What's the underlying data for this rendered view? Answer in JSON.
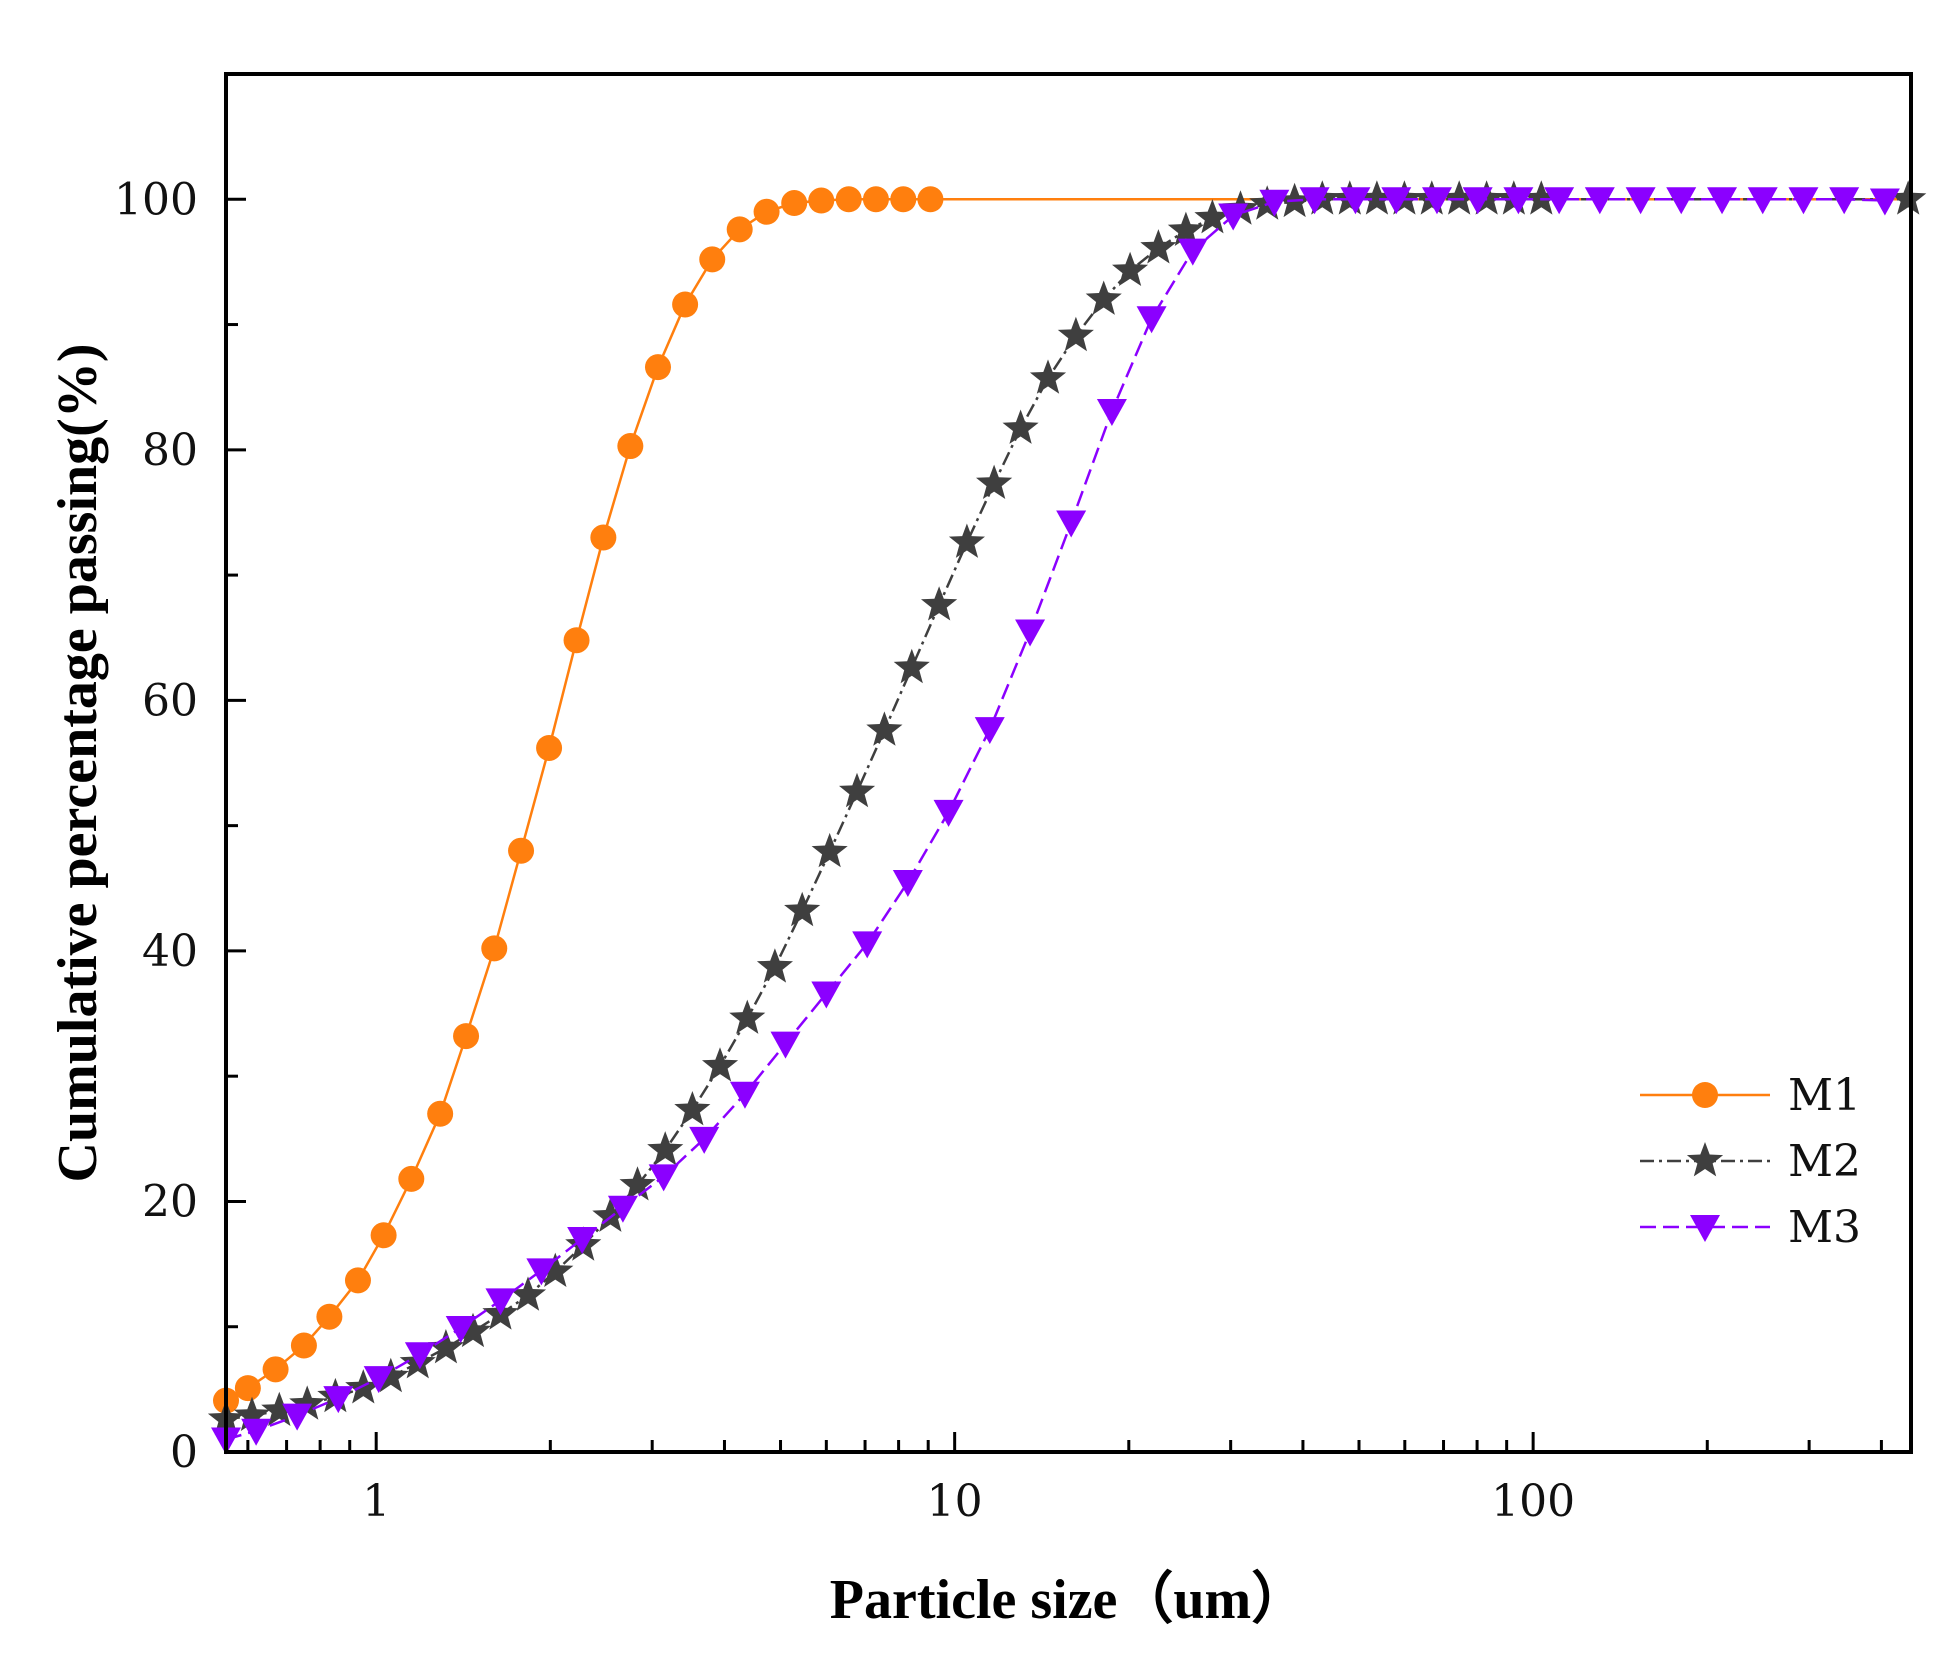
{
  "chart_data": {
    "type": "line",
    "title": "",
    "xlabel": "Particle size（um）",
    "ylabel": "Cumulative percentage passing(%)",
    "xscale": "log",
    "xlim": [
      0.55,
      450
    ],
    "ylim": [
      0,
      110
    ],
    "x_ticks": [
      1,
      10,
      100
    ],
    "x_tick_labels": [
      "1",
      "10",
      "100"
    ],
    "y_ticks": [
      0,
      20,
      40,
      60,
      80,
      100
    ],
    "y_tick_labels": [
      "0",
      "20",
      "40",
      "60",
      "80",
      "100"
    ],
    "grid": false,
    "legend_position": "center-right",
    "series": [
      {
        "name": "M1",
        "color": "#ff7f0e",
        "marker": "circle",
        "line_style": "solid",
        "x": [
          0.55,
          0.6,
          0.67,
          0.75,
          0.83,
          0.93,
          1.03,
          1.15,
          1.29,
          1.43,
          1.6,
          1.78,
          1.99,
          2.22,
          2.47,
          2.75,
          3.07,
          3.42,
          3.81,
          4.25,
          4.73,
          5.28,
          5.88,
          6.56,
          7.31,
          8.15,
          9.08
        ],
        "y": [
          4.1,
          5.1,
          6.6,
          8.5,
          10.8,
          13.7,
          17.3,
          21.8,
          27.0,
          33.2,
          40.2,
          48.0,
          56.2,
          64.8,
          73.0,
          80.3,
          86.6,
          91.6,
          95.2,
          97.6,
          99.0,
          99.7,
          99.9,
          100,
          100,
          100,
          100
        ],
        "line_extends_to_x": 450
      },
      {
        "name": "M2",
        "color": "#3f3f3f",
        "marker": "star",
        "line_style": "dash-dot",
        "x": [
          0.55,
          0.61,
          0.68,
          0.76,
          0.85,
          0.95,
          1.06,
          1.18,
          1.32,
          1.47,
          1.64,
          1.83,
          2.04,
          2.28,
          2.54,
          2.83,
          3.16,
          3.52,
          3.93,
          4.38,
          4.89,
          5.45,
          6.08,
          6.78,
          7.56,
          8.43,
          9.4,
          10.5,
          11.7,
          13.0,
          14.5,
          16.2,
          18.1,
          20.1,
          22.5,
          25.1,
          27.9,
          31.2,
          34.7,
          38.7,
          43.2,
          48.2,
          53.7,
          59.9,
          66.8,
          74.5,
          83.1,
          92.6,
          103.3,
          445.0
        ],
        "y": [
          2.6,
          2.9,
          3.3,
          3.8,
          4.4,
          5.1,
          6.0,
          7.1,
          8.3,
          9.6,
          11.0,
          12.5,
          14.4,
          16.5,
          18.8,
          21.3,
          24.1,
          27.3,
          30.8,
          34.6,
          38.7,
          43.2,
          47.9,
          52.7,
          57.6,
          62.6,
          67.6,
          72.6,
          77.3,
          81.7,
          85.7,
          89.1,
          92.0,
          94.3,
          96.1,
          97.5,
          98.5,
          99.2,
          99.6,
          99.8,
          100,
          100,
          100,
          100,
          100,
          100,
          100,
          100,
          100,
          100
        ]
      },
      {
        "name": "M3",
        "color": "#8b00ff",
        "marker": "triangle-down",
        "line_style": "dashed",
        "x": [
          0.55,
          0.62,
          0.73,
          0.86,
          1.01,
          1.19,
          1.4,
          1.64,
          1.93,
          2.27,
          2.67,
          3.14,
          3.69,
          4.34,
          5.1,
          6.0,
          7.06,
          8.3,
          9.76,
          11.5,
          13.5,
          15.9,
          18.7,
          21.9,
          25.8,
          30.3,
          35.7,
          41.9,
          49.3,
          58.0,
          68.2,
          80.2,
          94.3,
          110.9,
          130.4,
          153.4,
          180.3,
          212.1,
          249.4,
          293.3,
          344.9,
          405.6
        ],
        "y": [
          1.0,
          1.7,
          2.9,
          4.3,
          5.9,
          7.8,
          9.9,
          12.1,
          14.5,
          17.0,
          19.5,
          22.0,
          25.0,
          28.6,
          32.6,
          36.6,
          40.6,
          45.5,
          51.1,
          57.7,
          65.5,
          74.2,
          83.1,
          90.5,
          95.9,
          98.7,
          99.8,
          100,
          100,
          100,
          100,
          100,
          100,
          100,
          100,
          100,
          100,
          100,
          100,
          100,
          100,
          99.9
        ]
      }
    ]
  }
}
